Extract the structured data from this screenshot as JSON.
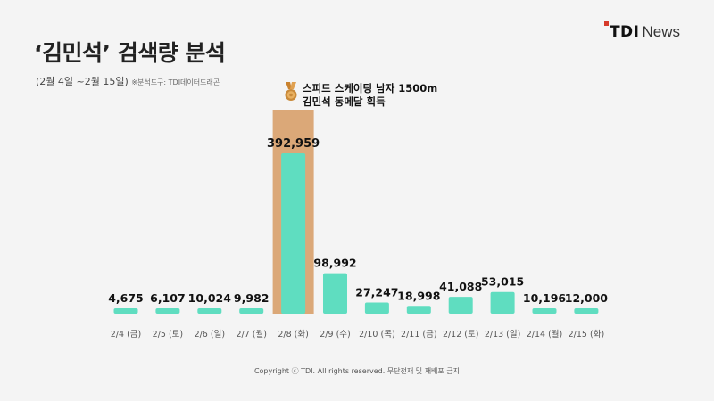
{
  "header": {
    "title": "‘김민석’ 검색량 분석",
    "period": "(2월 4일 ~2월 15일)",
    "tool_note": "※분석도구: TDI데이터드래곤"
  },
  "logo": {
    "brand": "TDI",
    "news": "News"
  },
  "annotation": {
    "line1": "스피드 스케이팅 남자 1500m",
    "line2": "김민석 동메달 획득",
    "icon": "bronze-medal-icon"
  },
  "footer": {
    "copyright": "Copyright ⓒ TDI. All rights reserved. 무단전재 및 재배포 금지"
  },
  "colors": {
    "bar": "#5fddc0",
    "highlight": "#dba878",
    "background": "#f4f4f4",
    "logo_dot": "#d63a2a"
  },
  "chart_data": {
    "type": "bar",
    "categories": [
      "2/4 (금)",
      "2/5 (토)",
      "2/6 (일)",
      "2/7 (월)",
      "2/8 (화)",
      "2/9 (수)",
      "2/10 (목)",
      "2/11 (금)",
      "2/12 (토)",
      "2/13 (일)",
      "2/14 (월)",
      "2/15 (화)"
    ],
    "values": [
      4675,
      6107,
      10024,
      9982,
      392959,
      98992,
      27247,
      18998,
      41088,
      53015,
      10196,
      12000
    ],
    "value_labels": [
      "4,675",
      "6,107",
      "10,024",
      "9,982",
      "392,959",
      "98,992",
      "27,247",
      "18,998",
      "41,088",
      "53,015",
      "10,196",
      "12,000"
    ],
    "highlight_index": 4,
    "title": "‘김민석’ 검색량 분석",
    "xlabel": "",
    "ylabel": "",
    "ylim": [
      0,
      400000
    ],
    "grid": false
  }
}
